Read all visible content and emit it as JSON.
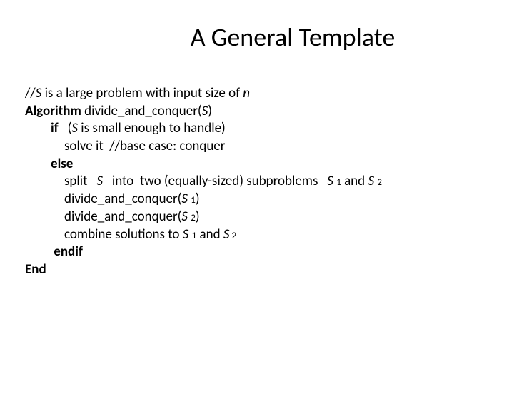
{
  "title": "A General Template",
  "l1_a": "//",
  "l1_b": "S",
  "l1_c": " is a large problem with input size of ",
  "l1_d": "n",
  "l2_a": "Algorithm",
  "l2_b": " divide_and_conquer(",
  "l2_c": "S",
  "l2_d": ")",
  "l3_a": "if",
  "l3_b": "   (",
  "l3_c": "S",
  "l3_d": " is small enough to handle)",
  "l4": "solve it  //base case: conquer",
  "l5": "else",
  "l6_a": "split   ",
  "l6_b": "S",
  "l6_c": "   into  two (equally-sized) subproblems   ",
  "l6_d": "S ",
  "l6_e": "1",
  "l6_f": " and ",
  "l6_g": "S ",
  "l6_h": "2",
  "l7_a": "divide_and_conquer(",
  "l7_b": "S ",
  "l7_c": "1",
  "l7_d": ")",
  "l8_a": "divide_and_conquer(",
  "l8_b": "S ",
  "l8_c": "2",
  "l8_d": ")",
  "l9_a": "combine solutions to ",
  "l9_b": "S ",
  "l9_c": "1",
  "l9_d": " and ",
  "l9_e": "S",
  "l9_f": " 2",
  "l10": " endif",
  "l11": "End",
  "colors": {
    "text": "#000000",
    "background": "#ffffff"
  },
  "fonts": {
    "title_size": 36,
    "body_size": 19,
    "sub_size": 13
  }
}
